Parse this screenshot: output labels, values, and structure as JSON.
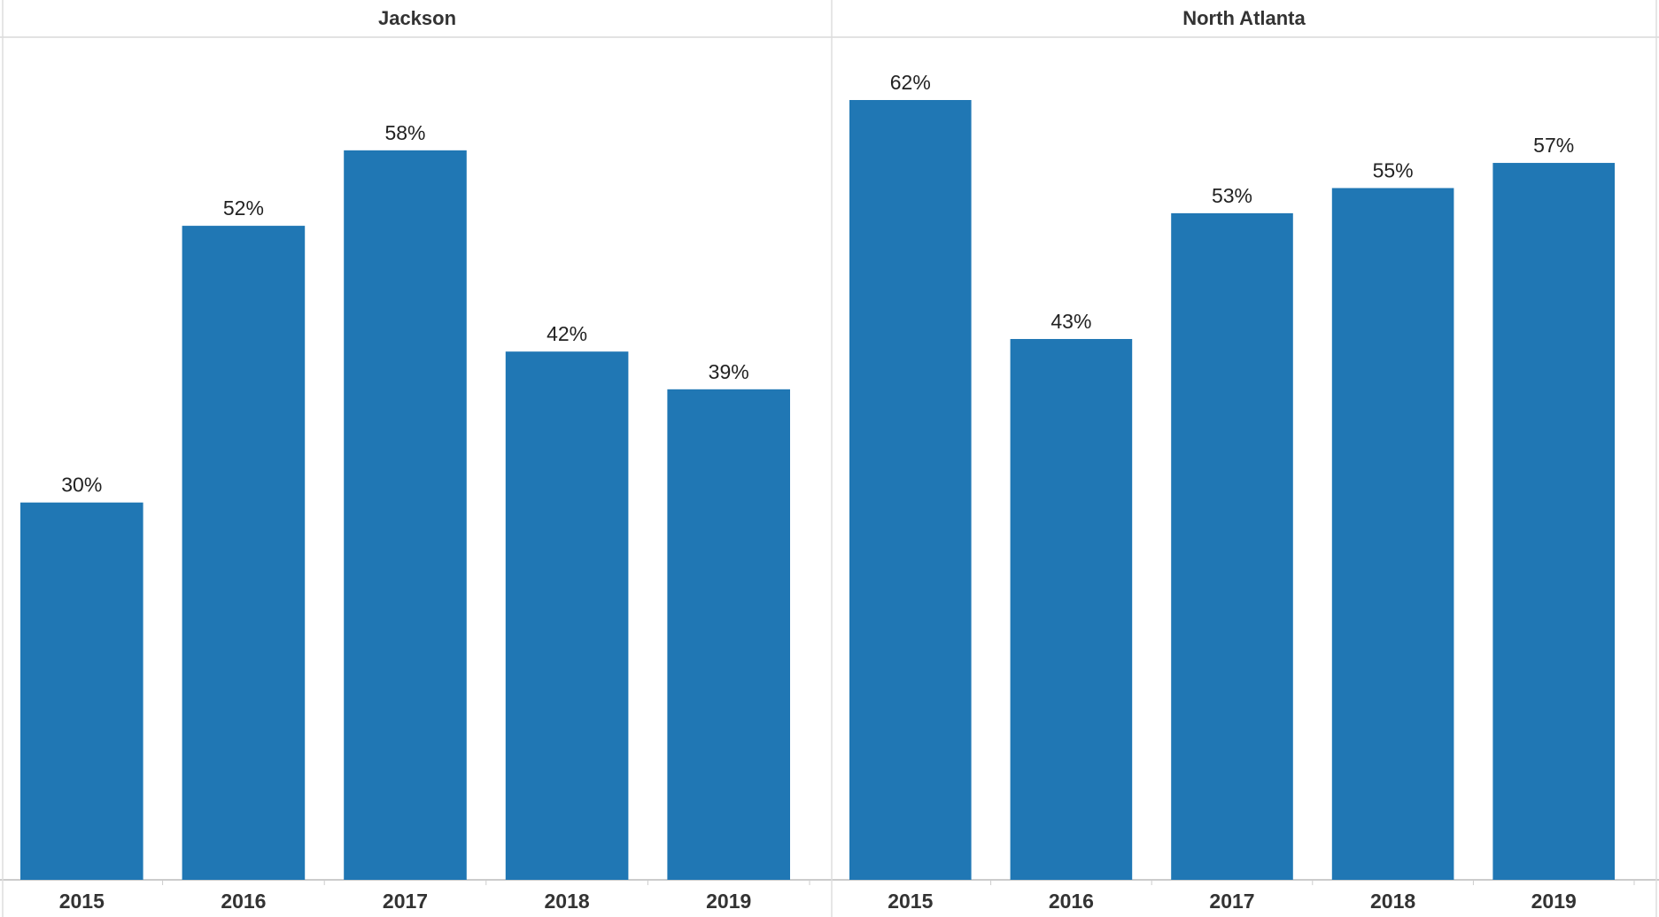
{
  "chart_data": {
    "type": "bar",
    "value_format": "percent",
    "bar_color": "#2077b4",
    "ylim": [
      0,
      62
    ],
    "grid": false,
    "panels": [
      {
        "title": "Jackson",
        "categories": [
          "2015",
          "2016",
          "2017",
          "2018",
          "2019"
        ],
        "values": [
          30,
          52,
          58,
          42,
          39
        ],
        "data_labels": [
          "30%",
          "52%",
          "58%",
          "42%",
          "39%"
        ]
      },
      {
        "title": "North Atlanta",
        "categories": [
          "2015",
          "2016",
          "2017",
          "2018",
          "2019"
        ],
        "values": [
          62,
          43,
          53,
          55,
          57
        ],
        "data_labels": [
          "62%",
          "43%",
          "53%",
          "55%",
          "57%"
        ]
      }
    ]
  }
}
